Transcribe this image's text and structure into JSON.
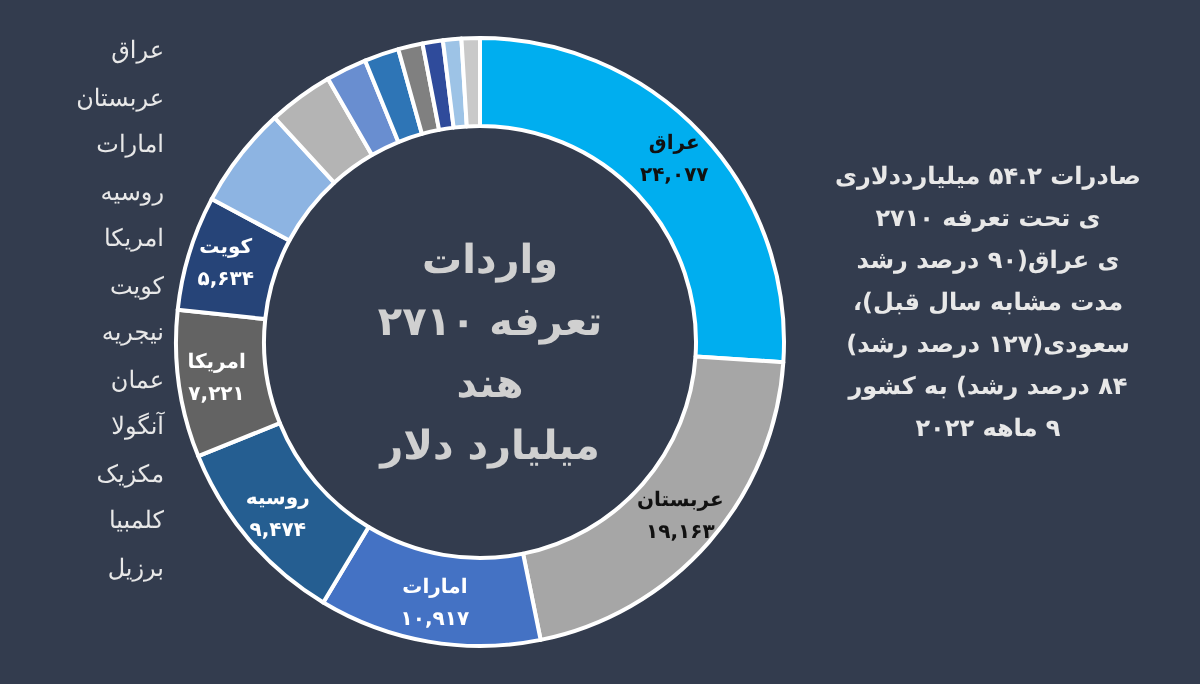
{
  "chart_data": {
    "type": "donut",
    "title": "واردات\nتعرفه ۲۷۱۰\nهند\nمیلیارد دلار",
    "categories": [
      "عراق",
      "عربستان",
      "امارات",
      "روسیه",
      "امریکا",
      "کویت",
      null,
      null,
      null,
      null,
      null,
      null,
      null,
      null
    ],
    "values": [
      24077,
      19163,
      10917,
      9474,
      7221,
      5634,
      5000,
      3200,
      2000,
      1700,
      1200,
      1000,
      900,
      900
    ],
    "value_labels": [
      "۲۴,۰۷۷",
      "۱۹,۱۶۳",
      "۱۰,۹۱۷",
      "۹,۴۷۴",
      "۷,۲۲۱",
      "۵,۶۳۴",
      null,
      null,
      null,
      null,
      null,
      null,
      null,
      null
    ],
    "colors": [
      "#00aeef",
      "#a6a6a6",
      "#4472c4",
      "#255e91",
      "#636363",
      "#264478",
      "#8db4e2",
      "#b4b4b4",
      "#698ed0",
      "#2e75b6",
      "#808080",
      "#2f4b9b",
      "#9dc3e6",
      "#c9c9c9"
    ],
    "annotations": [
      "عراق\nعربستان\nامارات\nروسیه\nامریکا\nکویت\nنیجریه\nعمان\nآنگولا\nمکزیک\nکلمبیا\nبرزیل",
      "صادرات ۵۴.۲ میلیارددلاری\nی تحت تعرفه ۲۷۱۰\nی عراق(۹۰ درصد رشد\nمدت مشابه سال قبل)،\nسعودی(۱۲۷ درصد رشد)\n۸۴ درصد رشد) به کشور\n۹ ماهه ۲۰۲۲"
    ],
    "legend": false
  }
}
